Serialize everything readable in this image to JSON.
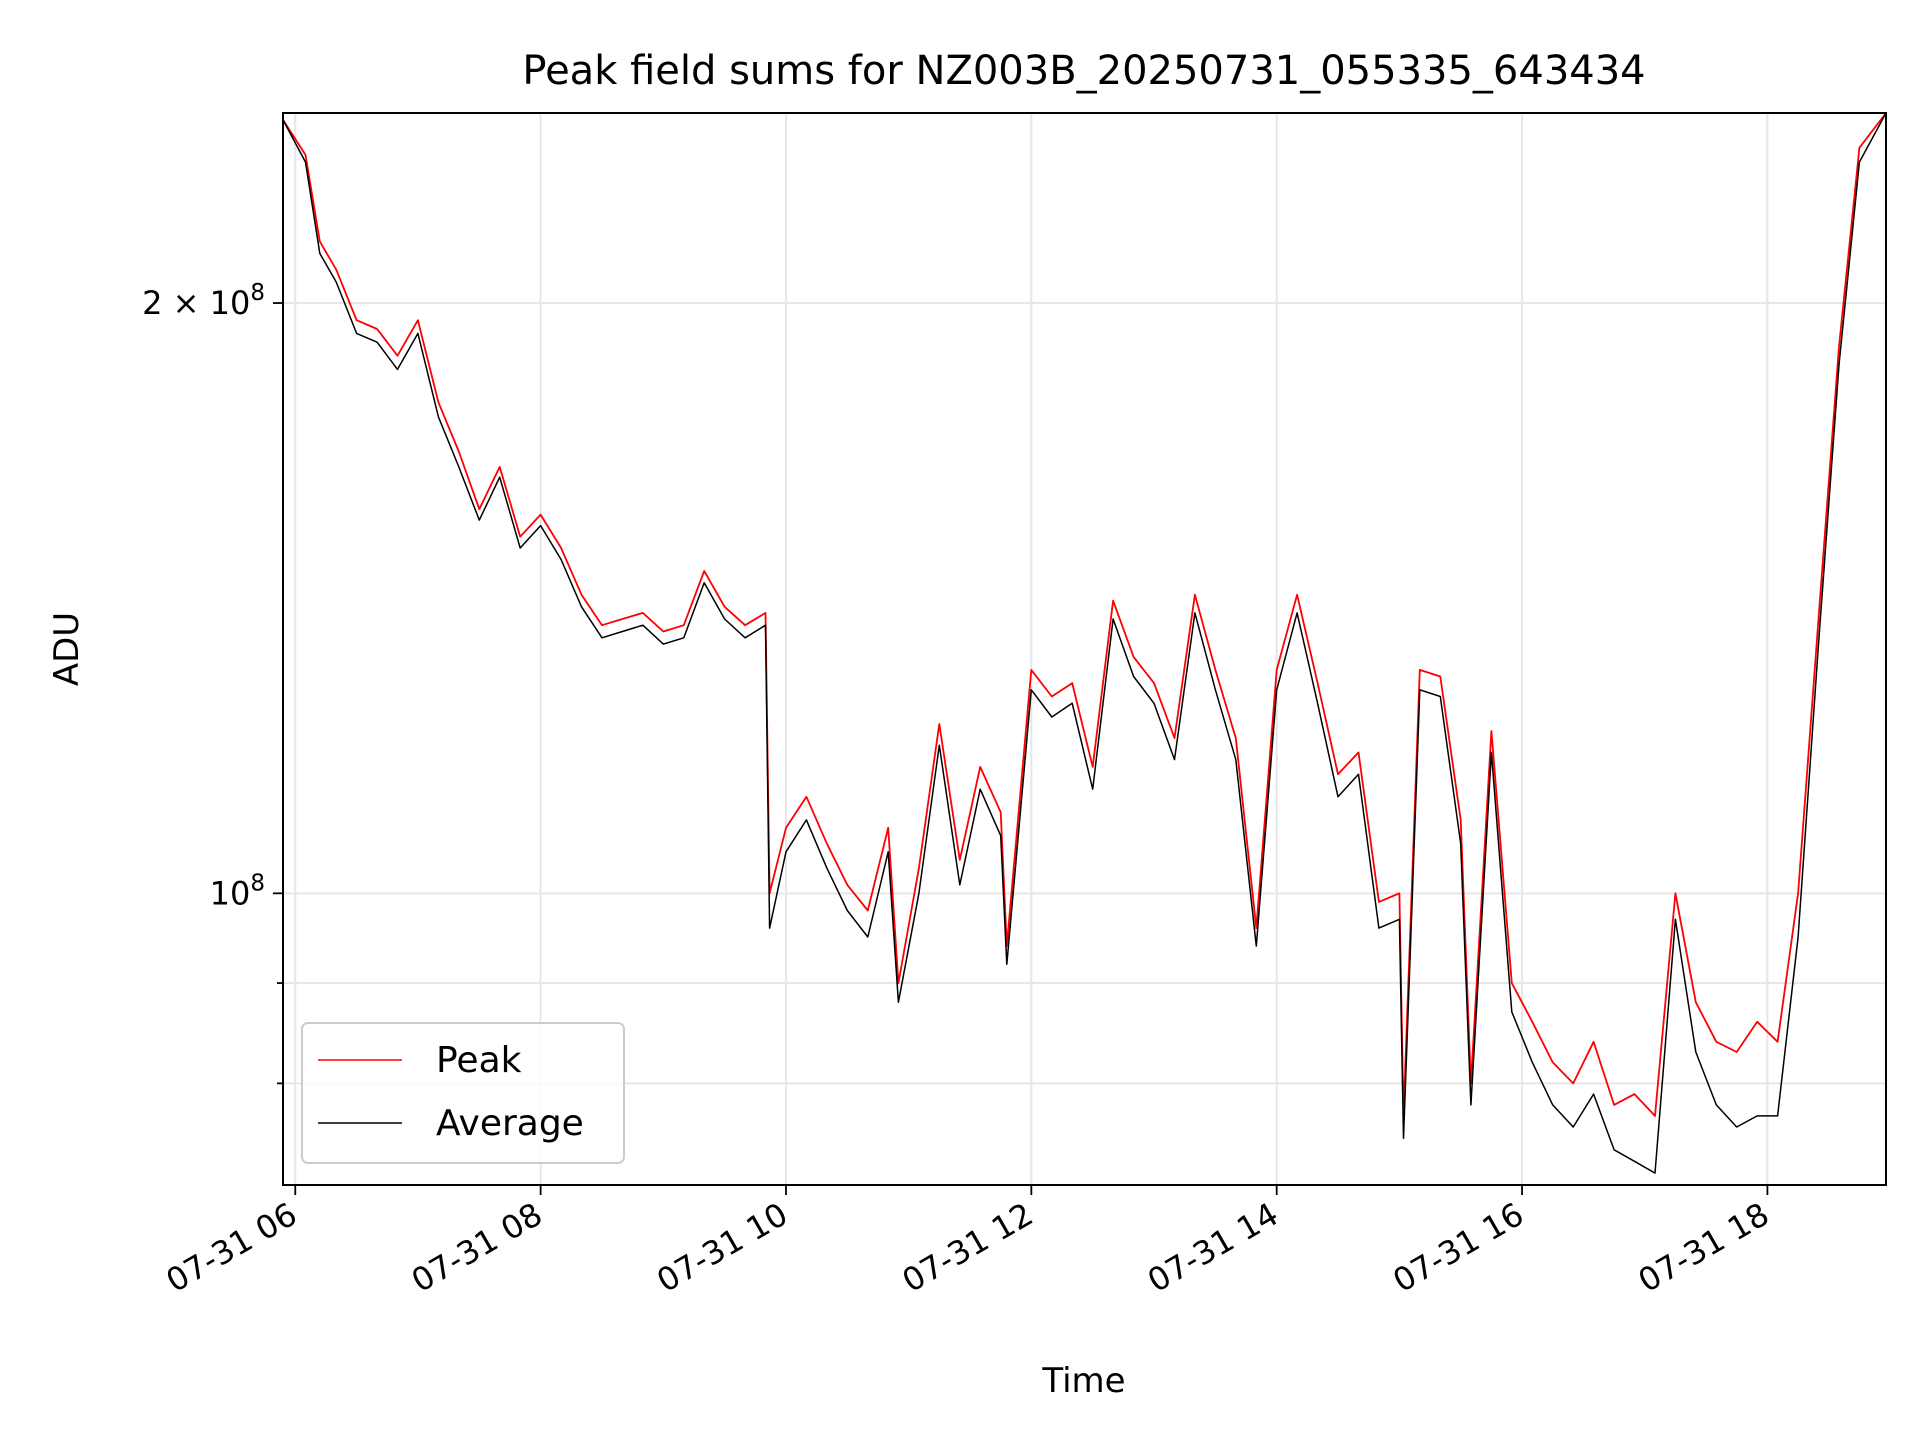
{
  "chart_data": {
    "type": "line",
    "title": "Peak field sums for NZ003B_20250731_055335_643434",
    "xlabel": "Time",
    "ylabel": "ADU",
    "xlim": [
      "2025-07-31 05:54",
      "2025-07-31 18:58"
    ],
    "ylim": [
      71000000,
      250000000
    ],
    "yscale": "log",
    "grid": true,
    "legend_position": "lower-left",
    "x_ticks": [
      {
        "value": "2025-07-31 06:00",
        "label": "07-31 06"
      },
      {
        "value": "2025-07-31 08:00",
        "label": "07-31 08"
      },
      {
        "value": "2025-07-31 10:00",
        "label": "07-31 10"
      },
      {
        "value": "2025-07-31 12:00",
        "label": "07-31 12"
      },
      {
        "value": "2025-07-31 14:00",
        "label": "07-31 14"
      },
      {
        "value": "2025-07-31 16:00",
        "label": "07-31 16"
      },
      {
        "value": "2025-07-31 18:00",
        "label": "07-31 18"
      }
    ],
    "y_major_ticks": [
      {
        "value": 100000000,
        "base": "10",
        "exp": "8",
        "mult": ""
      },
      {
        "value": 200000000,
        "base": "10",
        "exp": "8",
        "mult": "2 × "
      }
    ],
    "y_minor_ticks": [
      80000000,
      90000000
    ],
    "series": [
      {
        "name": "Peak",
        "color": "#ff0000",
        "x": [
          "2025-07-31 05:54",
          "2025-07-31 06:05",
          "2025-07-31 06:12",
          "2025-07-31 06:20",
          "2025-07-31 06:30",
          "2025-07-31 06:40",
          "2025-07-31 06:50",
          "2025-07-31 07:00",
          "2025-07-31 07:10",
          "2025-07-31 07:20",
          "2025-07-31 07:30",
          "2025-07-31 07:40",
          "2025-07-31 07:50",
          "2025-07-31 08:00",
          "2025-07-31 08:10",
          "2025-07-31 08:20",
          "2025-07-31 08:30",
          "2025-07-31 08:40",
          "2025-07-31 08:50",
          "2025-07-31 09:00",
          "2025-07-31 09:10",
          "2025-07-31 09:20",
          "2025-07-31 09:30",
          "2025-07-31 09:40",
          "2025-07-31 09:50",
          "2025-07-31 09:52",
          "2025-07-31 10:00",
          "2025-07-31 10:10",
          "2025-07-31 10:20",
          "2025-07-31 10:30",
          "2025-07-31 10:40",
          "2025-07-31 10:50",
          "2025-07-31 10:55",
          "2025-07-31 11:05",
          "2025-07-31 11:15",
          "2025-07-31 11:25",
          "2025-07-31 11:35",
          "2025-07-31 11:45",
          "2025-07-31 11:48",
          "2025-07-31 12:00",
          "2025-07-31 12:10",
          "2025-07-31 12:20",
          "2025-07-31 12:30",
          "2025-07-31 12:40",
          "2025-07-31 12:50",
          "2025-07-31 13:00",
          "2025-07-31 13:10",
          "2025-07-31 13:20",
          "2025-07-31 13:30",
          "2025-07-31 13:40",
          "2025-07-31 13:50",
          "2025-07-31 14:00",
          "2025-07-31 14:10",
          "2025-07-31 14:20",
          "2025-07-31 14:30",
          "2025-07-31 14:40",
          "2025-07-31 14:50",
          "2025-07-31 15:00",
          "2025-07-31 15:02",
          "2025-07-31 15:10",
          "2025-07-31 15:20",
          "2025-07-31 15:30",
          "2025-07-31 15:35",
          "2025-07-31 15:45",
          "2025-07-31 15:55",
          "2025-07-31 16:05",
          "2025-07-31 16:15",
          "2025-07-31 16:25",
          "2025-07-31 16:35",
          "2025-07-31 16:45",
          "2025-07-31 16:55",
          "2025-07-31 17:05",
          "2025-07-31 17:15",
          "2025-07-31 17:25",
          "2025-07-31 17:35",
          "2025-07-31 17:45",
          "2025-07-31 17:55",
          "2025-07-31 18:05",
          "2025-07-31 18:15",
          "2025-07-31 18:25",
          "2025-07-31 18:35",
          "2025-07-31 18:45",
          "2025-07-31 18:58"
        ],
        "values": [
          248000000,
          238000000,
          215000000,
          208000000,
          196000000,
          194000000,
          188000000,
          196000000,
          178000000,
          168000000,
          157000000,
          165000000,
          152000000,
          156000000,
          150000000,
          142000000,
          137000000,
          138000000,
          139000000,
          136000000,
          137000000,
          146000000,
          140000000,
          137000000,
          139000000,
          100000000,
          108000000,
          112000000,
          106000000,
          101000000,
          98000000,
          108000000,
          90000000,
          103000000,
          122000000,
          104000000,
          116000000,
          110000000,
          94000000,
          130000000,
          126000000,
          128000000,
          116000000,
          141000000,
          132000000,
          128000000,
          120000000,
          142000000,
          130000000,
          120000000,
          96000000,
          130000000,
          142000000,
          128000000,
          115000000,
          118000000,
          99000000,
          100000000,
          77000000,
          130000000,
          129000000,
          109000000,
          80000000,
          121000000,
          90000000,
          86000000,
          82000000,
          80000000,
          84000000,
          78000000,
          79000000,
          77000000,
          100000000,
          88000000,
          84000000,
          83000000,
          86000000,
          84000000,
          100000000,
          138000000,
          190000000,
          240000000,
          250000000
        ]
      },
      {
        "name": "Average",
        "color": "#000000",
        "x": [
          "2025-07-31 05:54",
          "2025-07-31 06:05",
          "2025-07-31 06:12",
          "2025-07-31 06:20",
          "2025-07-31 06:30",
          "2025-07-31 06:40",
          "2025-07-31 06:50",
          "2025-07-31 07:00",
          "2025-07-31 07:10",
          "2025-07-31 07:20",
          "2025-07-31 07:30",
          "2025-07-31 07:40",
          "2025-07-31 07:50",
          "2025-07-31 08:00",
          "2025-07-31 08:10",
          "2025-07-31 08:20",
          "2025-07-31 08:30",
          "2025-07-31 08:40",
          "2025-07-31 08:50",
          "2025-07-31 09:00",
          "2025-07-31 09:10",
          "2025-07-31 09:20",
          "2025-07-31 09:30",
          "2025-07-31 09:40",
          "2025-07-31 09:50",
          "2025-07-31 09:52",
          "2025-07-31 10:00",
          "2025-07-31 10:10",
          "2025-07-31 10:20",
          "2025-07-31 10:30",
          "2025-07-31 10:40",
          "2025-07-31 10:50",
          "2025-07-31 10:55",
          "2025-07-31 11:05",
          "2025-07-31 11:15",
          "2025-07-31 11:25",
          "2025-07-31 11:35",
          "2025-07-31 11:45",
          "2025-07-31 11:48",
          "2025-07-31 12:00",
          "2025-07-31 12:10",
          "2025-07-31 12:20",
          "2025-07-31 12:30",
          "2025-07-31 12:40",
          "2025-07-31 12:50",
          "2025-07-31 13:00",
          "2025-07-31 13:10",
          "2025-07-31 13:20",
          "2025-07-31 13:30",
          "2025-07-31 13:40",
          "2025-07-31 13:50",
          "2025-07-31 14:00",
          "2025-07-31 14:10",
          "2025-07-31 14:20",
          "2025-07-31 14:30",
          "2025-07-31 14:40",
          "2025-07-31 14:50",
          "2025-07-31 15:00",
          "2025-07-31 15:02",
          "2025-07-31 15:10",
          "2025-07-31 15:20",
          "2025-07-31 15:30",
          "2025-07-31 15:35",
          "2025-07-31 15:45",
          "2025-07-31 15:55",
          "2025-07-31 16:05",
          "2025-07-31 16:15",
          "2025-07-31 16:25",
          "2025-07-31 16:35",
          "2025-07-31 16:45",
          "2025-07-31 16:55",
          "2025-07-31 17:05",
          "2025-07-31 17:15",
          "2025-07-31 17:25",
          "2025-07-31 17:35",
          "2025-07-31 17:45",
          "2025-07-31 17:55",
          "2025-07-31 18:05",
          "2025-07-31 18:15",
          "2025-07-31 18:25",
          "2025-07-31 18:35",
          "2025-07-31 18:45",
          "2025-07-31 18:58"
        ],
        "values": [
          248000000,
          236000000,
          212000000,
          205000000,
          193000000,
          191000000,
          185000000,
          193000000,
          175000000,
          165000000,
          155000000,
          163000000,
          150000000,
          154000000,
          148000000,
          140000000,
          135000000,
          136000000,
          137000000,
          134000000,
          135000000,
          144000000,
          138000000,
          135000000,
          137000000,
          96000000,
          105000000,
          109000000,
          103000000,
          98000000,
          95000000,
          105000000,
          88000000,
          100000000,
          119000000,
          101000000,
          113000000,
          107000000,
          92000000,
          127000000,
          123000000,
          125000000,
          113000000,
          138000000,
          129000000,
          125000000,
          117000000,
          139000000,
          127000000,
          117000000,
          94000000,
          127000000,
          139000000,
          125000000,
          112000000,
          115000000,
          96000000,
          97000000,
          75000000,
          127000000,
          126000000,
          106000000,
          78000000,
          118000000,
          87000000,
          82000000,
          78000000,
          76000000,
          79000000,
          74000000,
          73000000,
          72000000,
          97000000,
          83000000,
          78000000,
          76000000,
          77000000,
          77000000,
          95000000,
          134000000,
          186000000,
          236000000,
          250000000
        ]
      }
    ]
  }
}
